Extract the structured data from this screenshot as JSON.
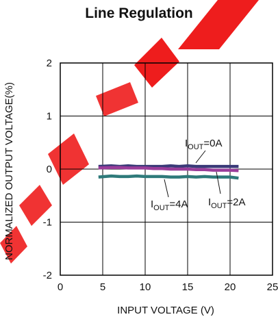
{
  "chart_data": {
    "type": "line",
    "title": "Line Regulation",
    "xlabel": "INPUT VOLTAGE (V)",
    "ylabel": "NORMALIZED OUTPUT VOLTAGE(%)",
    "xlim": [
      0,
      25
    ],
    "ylim": [
      -2,
      2
    ],
    "xticks": [
      0,
      5,
      10,
      15,
      20,
      25
    ],
    "yticks": [
      -2,
      -1,
      0,
      1,
      2
    ],
    "grid": true,
    "series": [
      {
        "name": "IOUT=0A",
        "label_main": "I",
        "label_sub": "OUT",
        "label_tail": "=0A",
        "color": "#3a3a78",
        "x": [
          4.5,
          6,
          7,
          8,
          9,
          10,
          11,
          12,
          13,
          14,
          15,
          16,
          17,
          18,
          19,
          20,
          21
        ],
        "y": [
          0.05,
          0.06,
          0.05,
          0.06,
          0.05,
          0.05,
          0.05,
          0.05,
          0.06,
          0.05,
          0.06,
          0.05,
          0.05,
          0.05,
          0.05,
          0.05,
          0.05
        ]
      },
      {
        "name": "IOUT=2A",
        "label_main": "I",
        "label_sub": "OUT",
        "label_tail": "=2A",
        "color": "#9a3d9a",
        "x": [
          4.5,
          6,
          7,
          8,
          9,
          10,
          11,
          12,
          13,
          14,
          15,
          16,
          17,
          18,
          19,
          20,
          21
        ],
        "y": [
          0.02,
          0.03,
          0.03,
          0.02,
          0.02,
          0.02,
          0.01,
          0.01,
          0.0,
          0.0,
          0.0,
          -0.01,
          -0.01,
          -0.02,
          -0.02,
          -0.02,
          -0.03
        ]
      },
      {
        "name": "IOUT=4A",
        "label_main": "I",
        "label_sub": "OUT",
        "label_tail": "=4A",
        "color": "#2e7a7a",
        "x": [
          4.5,
          6,
          7,
          8,
          9,
          10,
          11,
          12,
          13,
          14,
          15,
          16,
          17,
          18,
          19,
          20,
          21
        ],
        "y": [
          -0.15,
          -0.13,
          -0.14,
          -0.14,
          -0.13,
          -0.14,
          -0.14,
          -0.14,
          -0.15,
          -0.15,
          -0.14,
          -0.15,
          -0.14,
          -0.15,
          -0.15,
          -0.15,
          -0.17
        ]
      }
    ]
  },
  "colors": {
    "grid": "#000000",
    "watermark": "#ee1111"
  }
}
